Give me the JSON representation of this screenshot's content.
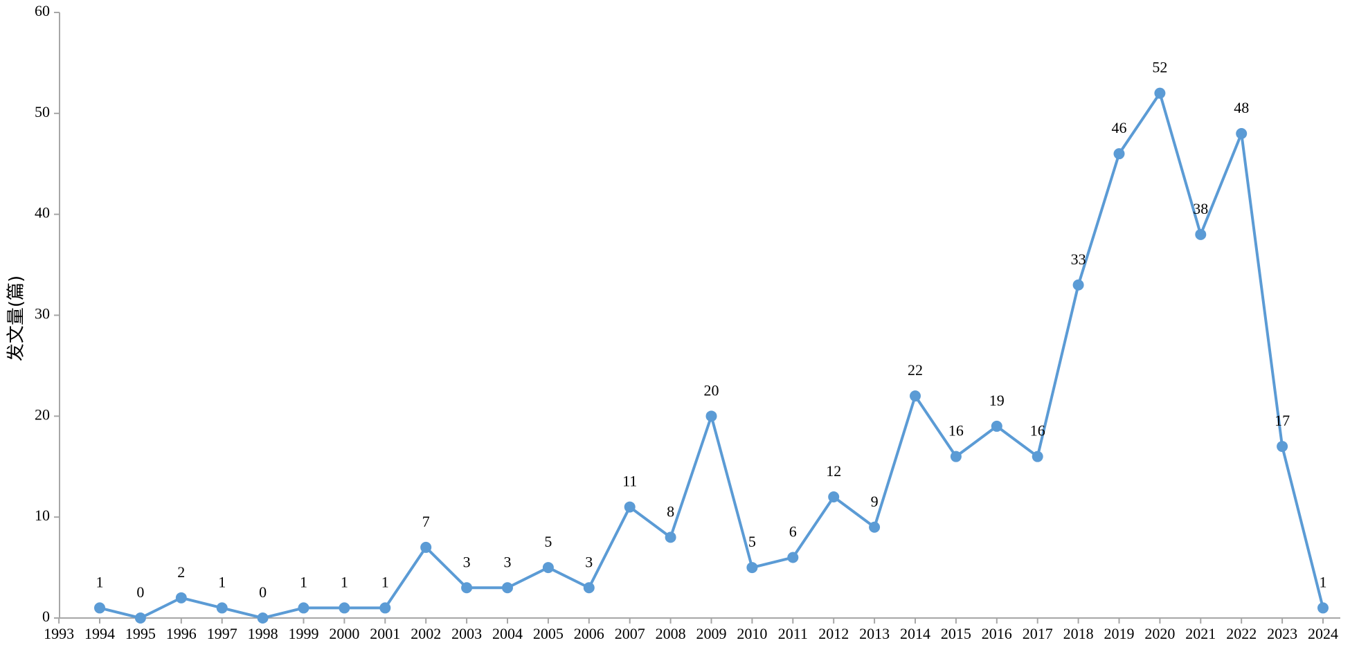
{
  "chart_data": {
    "type": "line",
    "title": "",
    "xlabel": "",
    "ylabel": "发文量(篇)",
    "ylim": [
      0,
      60
    ],
    "yticks": [
      0,
      10,
      20,
      30,
      40,
      50,
      60
    ],
    "grid": false,
    "legend": "none",
    "x_tick_labels": [
      "1993",
      "1994",
      "1995",
      "1996",
      "1997",
      "1998",
      "1999",
      "2000",
      "2001",
      "2002",
      "2003",
      "2004",
      "2005",
      "2006",
      "2007",
      "2008",
      "2009",
      "2010",
      "2011",
      "2012",
      "2013",
      "2014",
      "2015",
      "2016",
      "2017",
      "2018",
      "2019",
      "2020",
      "2021",
      "2022",
      "2023",
      "2024"
    ],
    "x": [
      "1994",
      "1995",
      "1996",
      "1997",
      "1998",
      "1999",
      "2000",
      "2001",
      "2002",
      "2003",
      "2004",
      "2005",
      "2006",
      "2007",
      "2008",
      "2009",
      "2010",
      "2011",
      "2012",
      "2013",
      "2014",
      "2015",
      "2016",
      "2017",
      "2018",
      "2019",
      "2020",
      "2021",
      "2022",
      "2023",
      "2024"
    ],
    "series": [
      {
        "values": [
          1,
          0,
          2,
          1,
          0,
          1,
          1,
          1,
          7,
          3,
          3,
          5,
          3,
          11,
          8,
          20,
          5,
          6,
          12,
          9,
          22,
          16,
          19,
          16,
          33,
          46,
          52,
          38,
          48,
          17,
          1
        ],
        "color": "#5b9bd5"
      }
    ],
    "axis_color": "#a6a6a6"
  }
}
